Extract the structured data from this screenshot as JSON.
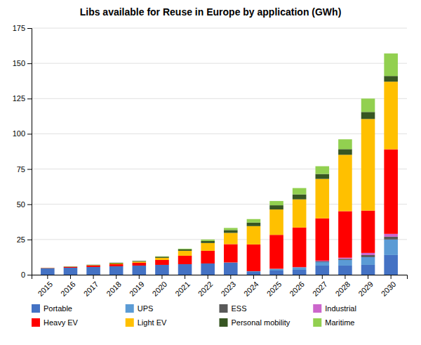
{
  "chart_data": {
    "type": "bar",
    "stacked": true,
    "title": "Libs available for Reuse in Europe by application (GWh)",
    "categories": [
      "2015",
      "2016",
      "2017",
      "2018",
      "2019",
      "2020",
      "2021",
      "2022",
      "2023",
      "2024",
      "2025",
      "2026",
      "2027",
      "2028",
      "2029",
      "2030"
    ],
    "series": [
      {
        "name": "Portable",
        "color": "#4472C4",
        "values": [
          4.5,
          5.0,
          5.5,
          6.0,
          6.5,
          7.0,
          7.5,
          8.0,
          8.5,
          2.0,
          3.0,
          3.5,
          6.5,
          6.5,
          7.0,
          14.0
        ]
      },
      {
        "name": "UPS",
        "color": "#5B9BD5",
        "values": [
          0.0,
          0.0,
          0.0,
          0.0,
          0.0,
          0.0,
          0.0,
          0.0,
          0.2,
          0.5,
          1.0,
          1.5,
          2.5,
          4.0,
          5.5,
          11.0
        ]
      },
      {
        "name": "ESS",
        "color": "#595959",
        "values": [
          0.0,
          0.0,
          0.0,
          0.0,
          0.0,
          0.0,
          0.0,
          0.0,
          0.0,
          0.0,
          0.2,
          0.3,
          0.5,
          0.8,
          1.5,
          2.0
        ]
      },
      {
        "name": "Industrial",
        "color": "#CC66CC",
        "values": [
          0.0,
          0.0,
          0.0,
          0.0,
          0.0,
          0.0,
          0.0,
          0.0,
          0.0,
          0.0,
          0.1,
          0.2,
          0.5,
          0.8,
          1.5,
          2.0
        ]
      },
      {
        "name": "Heavy EV",
        "color": "#FF0000",
        "values": [
          0.2,
          0.5,
          1.0,
          1.5,
          2.0,
          3.5,
          6.0,
          9.0,
          13.0,
          19.0,
          24.0,
          28.0,
          30.0,
          33.0,
          30.0,
          60.0
        ]
      },
      {
        "name": "Light EV",
        "color": "#FFC000",
        "values": [
          0.1,
          0.2,
          0.3,
          0.5,
          0.8,
          1.5,
          3.5,
          5.5,
          8.0,
          13.0,
          18.0,
          20.0,
          28.0,
          40.0,
          65.0,
          48.0
        ]
      },
      {
        "name": "Personal mobility",
        "color": "#375623",
        "values": [
          0.1,
          0.2,
          0.3,
          0.5,
          0.5,
          0.8,
          1.0,
          1.5,
          2.0,
          2.5,
          3.0,
          3.5,
          3.5,
          4.0,
          5.0,
          4.0
        ]
      },
      {
        "name": "Maritime",
        "color": "#92D050",
        "values": [
          0.0,
          0.0,
          0.0,
          0.0,
          0.0,
          0.3,
          0.5,
          1.0,
          1.5,
          2.5,
          3.0,
          4.5,
          5.5,
          7.0,
          9.5,
          16.0
        ]
      }
    ],
    "ylim": [
      0,
      175
    ],
    "yticks": [
      0,
      25,
      50,
      75,
      100,
      125,
      150,
      175
    ],
    "grid": true,
    "legend": "bottom"
  }
}
